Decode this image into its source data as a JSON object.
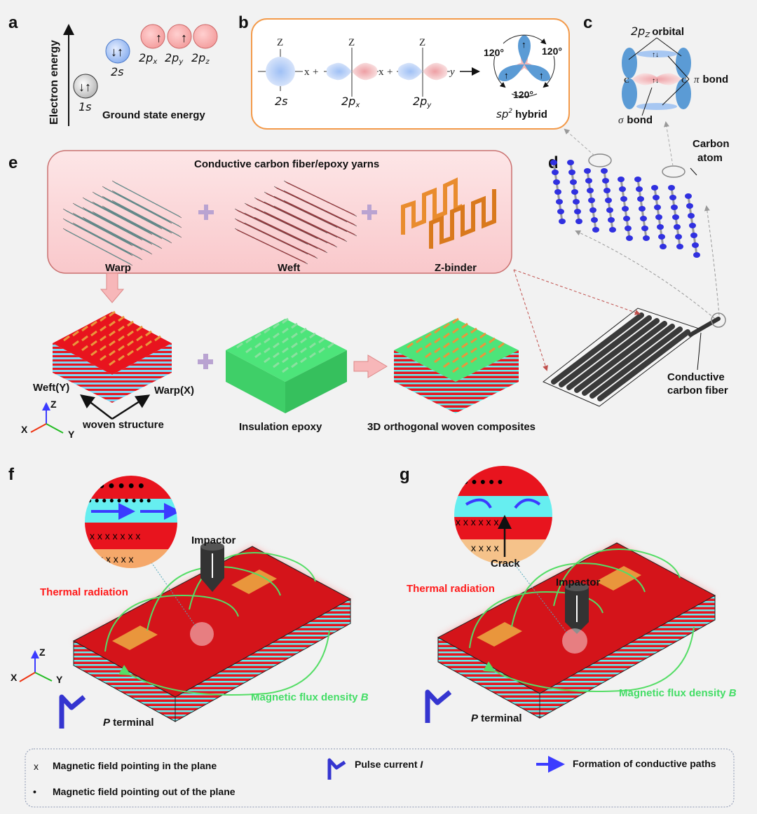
{
  "panels": {
    "a": {
      "label": "a",
      "axis": "Electron energy",
      "orbitals": [
        "1s",
        "2s",
        "2p",
        "x",
        "2p",
        "y",
        "2p",
        "z"
      ],
      "caption": "Ground state energy"
    },
    "b": {
      "label": "b",
      "axis_z": "Z",
      "axis_x": "x",
      "axis_y": "y",
      "plus": "+",
      "s": "2s",
      "px": "2p",
      "px_sub": "x",
      "py": "2p",
      "py_sub": "y",
      "angle": "120°",
      "hybrid_sp": "sp",
      "hybrid_sup": "2",
      "hybrid": "hybrid"
    },
    "c": {
      "label": "c",
      "orbital": "2p",
      "orbital_sub": "Z",
      "orbital_word": "orbital",
      "pi": "π",
      "pi_bond": "bond",
      "sigma": "σ",
      "sigma_bond": "bond",
      "atom": "C"
    },
    "d": {
      "label": "d",
      "carbon_atom_1": "Carbon",
      "carbon_atom_2": "atom",
      "fiber_1": "Conductive",
      "fiber_2": "carbon fiber"
    },
    "e": {
      "label": "e",
      "title": "Conductive carbon fiber/epoxy yarns",
      "warp": "Warp",
      "weft": "Weft",
      "zbinder": "Z-binder",
      "weft_y": "Weft(Y)",
      "warp_x": "Warp(X)",
      "woven": "woven structure",
      "epoxy": "Insulation epoxy",
      "composite": "3D orthogonal woven composites"
    },
    "f": {
      "label": "f",
      "impactor": "Impactor",
      "thermal": "Thermal radiation",
      "flux": "Magnetic flux density ",
      "flux_b": "B",
      "terminal_p": "P",
      "terminal": " terminal"
    },
    "g": {
      "label": "g",
      "impactor": "Impactor",
      "crack": "Crack",
      "thermal": "Thermal radiation",
      "flux": "Magnetic flux density ",
      "flux_b": "B",
      "terminal_p": "P",
      "terminal": " terminal"
    }
  },
  "axes": {
    "x": "X",
    "y": "Y",
    "z": "Z"
  },
  "legend": {
    "in_symbol": "x",
    "in_plane": "Magnetic field pointing in the plane",
    "out_symbol": "•",
    "out_plane": "Magnetic field pointing out of the  plane",
    "pulse": "Pulse current ",
    "pulse_i": "I",
    "paths": "Formation of conductive paths"
  },
  "colors": {
    "background": "#f2f2f2",
    "orange_box": "#f39a4a",
    "pink_box": "#fbd6d8",
    "red": "#e8141e",
    "cyan": "#66eef0",
    "green": "#4de47a",
    "blue": "#3b3bff",
    "flux_green": "#55dd66",
    "thermal_red": "#ff1a1a"
  }
}
